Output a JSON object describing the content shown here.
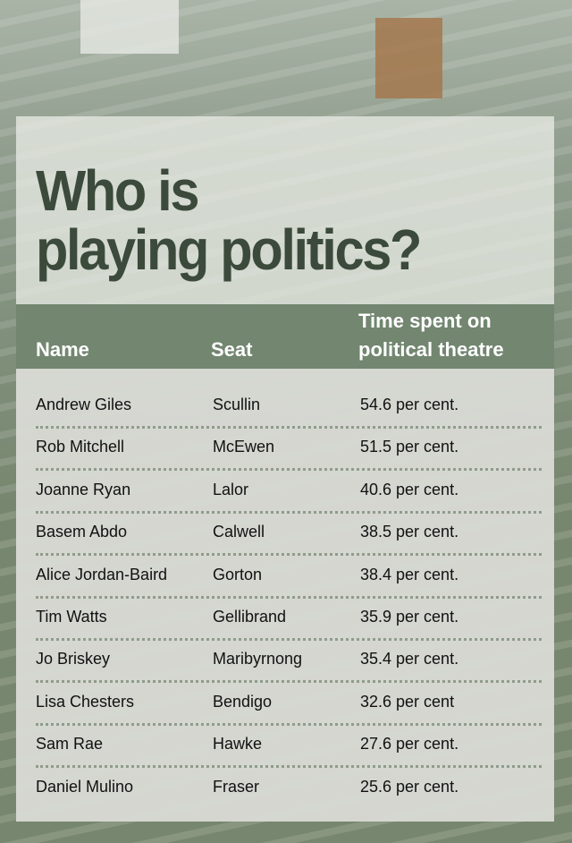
{
  "title": [
    "Who is",
    "playing politics?"
  ],
  "colors": {
    "background": "#77876f",
    "header": "#728670",
    "title_text": "#3b4a3b",
    "table_body": "#d8dad4"
  },
  "table": {
    "headers": {
      "name": "Name",
      "seat": "Seat",
      "time_line1": "Time spent on",
      "time_line2": "political theatre"
    },
    "rows": [
      {
        "name": "Andrew Giles",
        "seat": "Scullin",
        "time": "54.6 per cent."
      },
      {
        "name": "Rob Mitchell",
        "seat": "McEwen",
        "time": "51.5 per cent."
      },
      {
        "name": "Joanne Ryan",
        "seat": "Lalor",
        "time": "40.6 per cent."
      },
      {
        "name": "Basem Abdo",
        "seat": "Calwell",
        "time": "38.5 per cent."
      },
      {
        "name": "Alice Jordan-Baird",
        "seat": "Gorton",
        "time": "38.4 per cent."
      },
      {
        "name": "Tim Watts",
        "seat": "Gellibrand",
        "time": "35.9 per cent."
      },
      {
        "name": "Jo Briskey",
        "seat": "Maribyrnong",
        "time": "35.4 per cent."
      },
      {
        "name": "Lisa Chesters",
        "seat": "Bendigo",
        "time": "32.6 per cent"
      },
      {
        "name": "Sam Rae",
        "seat": "Hawke",
        "time": "27.6 per cent."
      },
      {
        "name": "Daniel Mulino",
        "seat": "Fraser",
        "time": "25.6 per cent."
      }
    ]
  }
}
